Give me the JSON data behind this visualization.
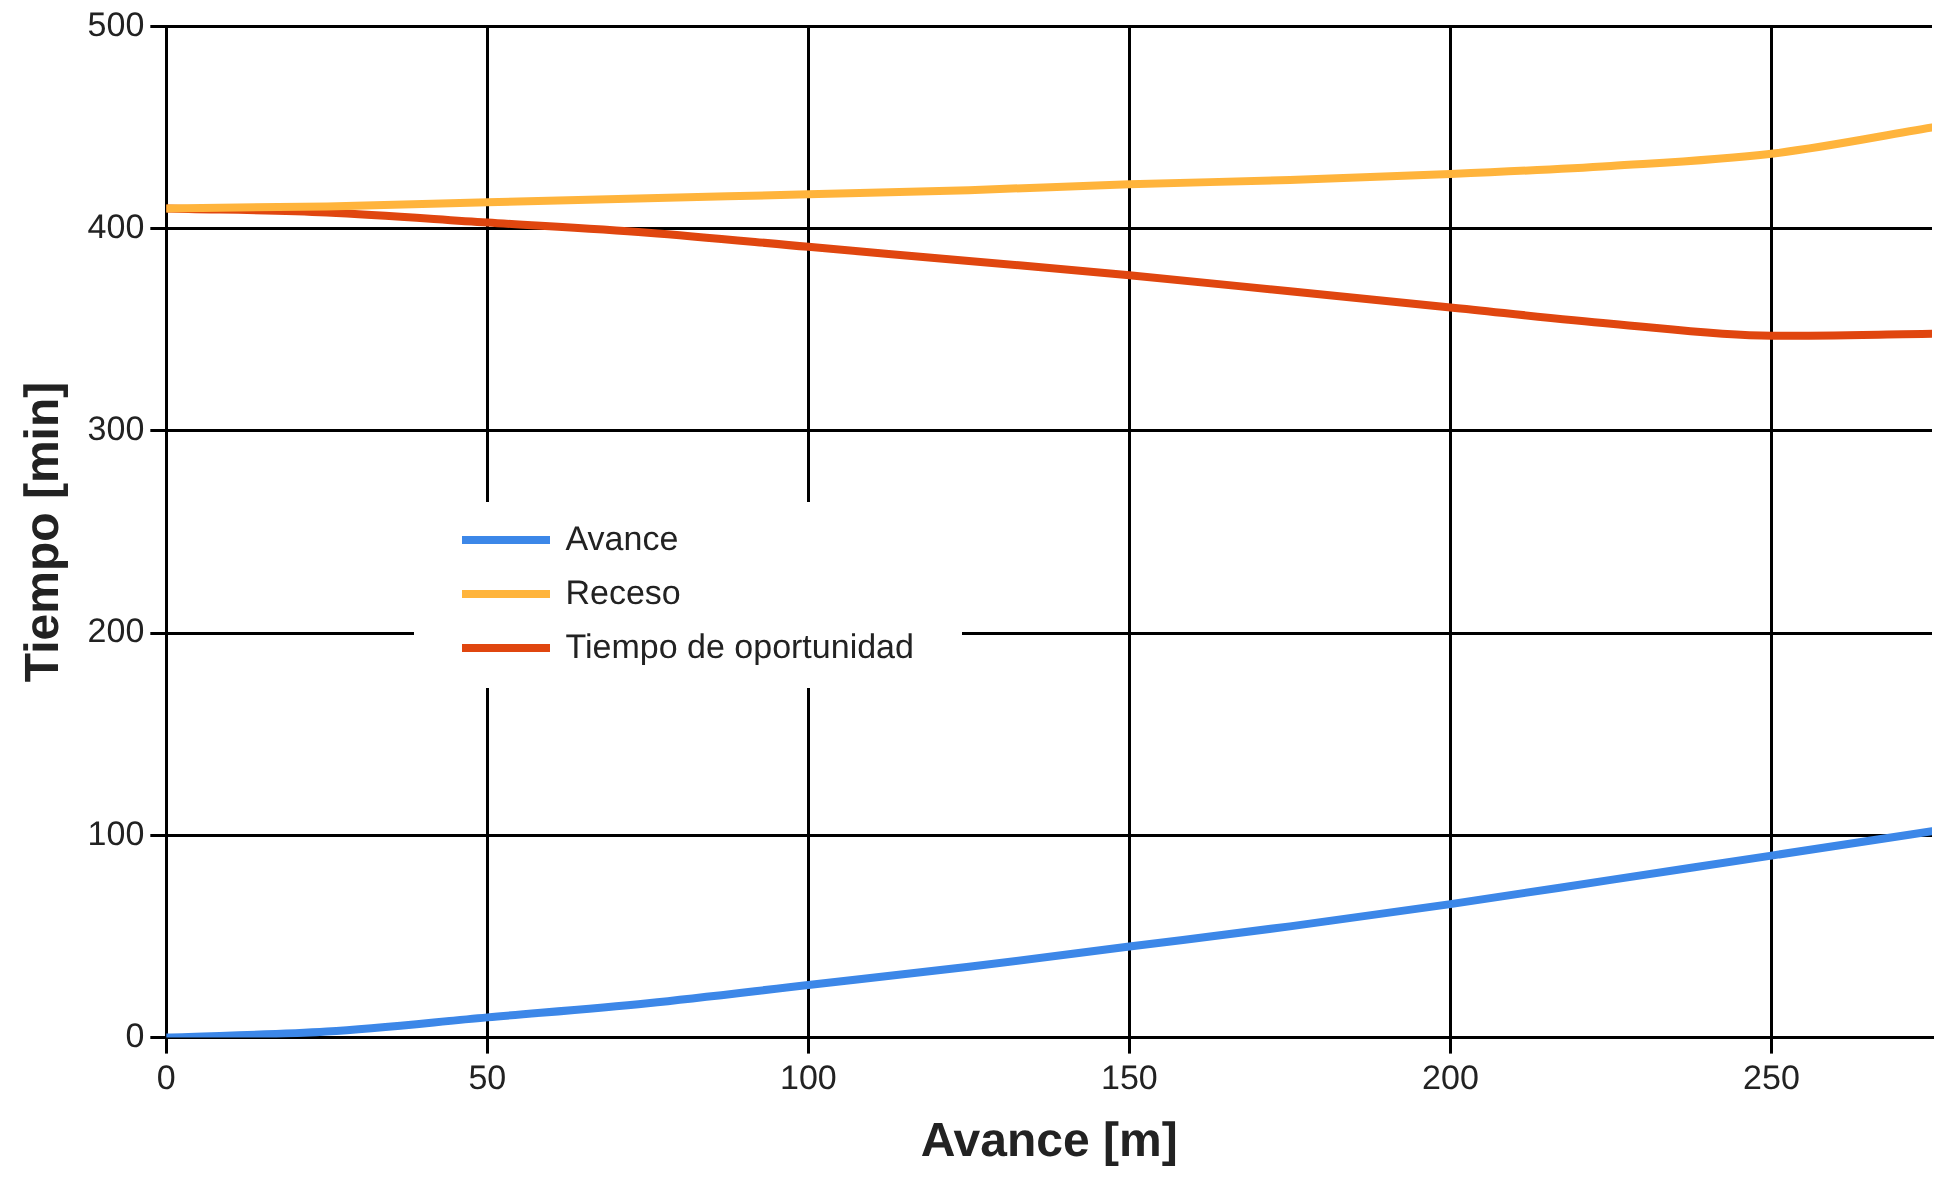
{
  "chart_data": {
    "type": "line",
    "xlabel": "Avance [m]",
    "ylabel": "Tiempo [min]",
    "x": [
      0,
      25,
      50,
      75,
      100,
      125,
      150,
      175,
      200,
      225,
      250,
      275
    ],
    "series": [
      {
        "name": "Avance",
        "color": "#3c87e8",
        "values": [
          0,
          3,
          10,
          17,
          26,
          35,
          45,
          55,
          66,
          78,
          90,
          102
        ]
      },
      {
        "name": "Receso",
        "color": "#ffb43c",
        "values": [
          410,
          411,
          413,
          415,
          417,
          419,
          422,
          424,
          427,
          431,
          437,
          450
        ]
      },
      {
        "name": "Tiempo de oportunidad",
        "color": "#e0460f",
        "values": [
          410,
          408,
          403,
          398,
          391,
          384,
          377,
          369,
          361,
          353,
          347,
          348
        ]
      }
    ],
    "xlim": [
      0,
      275
    ],
    "xticks": [
      0,
      50,
      100,
      150,
      200,
      250
    ],
    "ylim": [
      0,
      500
    ],
    "yticks": [
      0,
      100,
      200,
      300,
      400,
      500
    ],
    "grid": true,
    "legend": "left",
    "marker": "none",
    "line_style": "solid"
  }
}
